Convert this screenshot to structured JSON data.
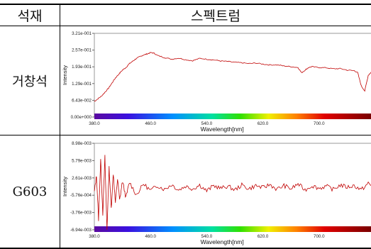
{
  "header": {
    "material": "석재",
    "spectrum": "스펙트럼"
  },
  "rows": [
    {
      "label": "거창석",
      "chart_data": {
        "type": "line",
        "xlabel": "Wavelength[nm]",
        "ylabel": "Intensity",
        "xlim": [
          380,
          780
        ],
        "ylim": [
          0,
          0.321
        ],
        "x_ticks": [
          "380.0",
          "460.0",
          "540.0",
          "620.0",
          "700.0",
          "78"
        ],
        "y_ticks": [
          "0.00e+000",
          "6.43e-002",
          "1.29e-001",
          "1.93e-001",
          "2.57e-001",
          "3.21e-001"
        ],
        "series": [
          {
            "color": "#c00000",
            "x": [
              380,
              385,
              390,
              395,
              400,
              405,
              410,
              415,
              420,
              425,
              430,
              435,
              440,
              445,
              450,
              455,
              460,
              465,
              470,
              480,
              490,
              500,
              510,
              520,
              530,
              540,
              550,
              560,
              570,
              580,
              590,
              600,
              610,
              620,
              630,
              640,
              650,
              660,
              670,
              675,
              680,
              685,
              690,
              700,
              710,
              720,
              730,
              740,
              750,
              755,
              760,
              765,
              770,
              775,
              780
            ],
            "y": [
              0.06,
              0.07,
              0.08,
              0.095,
              0.11,
              0.13,
              0.15,
              0.165,
              0.18,
              0.19,
              0.205,
              0.215,
              0.225,
              0.232,
              0.238,
              0.242,
              0.247,
              0.245,
              0.236,
              0.228,
              0.222,
              0.226,
              0.22,
              0.216,
              0.225,
              0.222,
              0.219,
              0.215,
              0.213,
              0.21,
              0.208,
              0.205,
              0.207,
              0.203,
              0.2,
              0.2,
              0.196,
              0.193,
              0.19,
              0.17,
              0.18,
              0.19,
              0.193,
              0.19,
              0.189,
              0.185,
              0.186,
              0.18,
              0.178,
              0.17,
              0.12,
              0.1,
              0.16,
              0.175,
              0.18
            ]
          }
        ]
      }
    },
    {
      "label": "G603",
      "chart_data": {
        "type": "line",
        "xlabel": "Wavelength[nm]",
        "ylabel": "Intensity",
        "xlim": [
          380,
          780
        ],
        "ylim": [
          -0.00694,
          0.00898
        ],
        "x_ticks": [
          "380.0",
          "460.0",
          "540.0",
          "620.0",
          "700.0",
          "78"
        ],
        "y_ticks": [
          "-6.94e-003",
          "-3.76e-003",
          "-5.76e-004",
          "2.61e-003",
          "5.79e-003",
          "8.98e-003"
        ],
        "series": [
          {
            "color": "#c00000",
            "noise_mean": 0.0008,
            "x": [
              380,
              383,
              386,
              389,
              392,
              395,
              398,
              401,
              404,
              407,
              410,
              413,
              416,
              420,
              425,
              430,
              440,
              450,
              460,
              470,
              480,
              490,
              500,
              510,
              520,
              530,
              540,
              550,
              560,
              570,
              580,
              590,
              600,
              610,
              620,
              630,
              640,
              650,
              660,
              670,
              680,
              690,
              700,
              710,
              720,
              730,
              740,
              750,
              760,
              770,
              780
            ],
            "y": [
              0.0,
              0.003,
              -0.005,
              0.006,
              -0.004,
              0.0065,
              -0.0069,
              0.0045,
              -0.003,
              0.0035,
              -0.002,
              0.0025,
              -0.0015,
              0.002,
              -0.001,
              0.0018,
              -0.0005,
              0.0015,
              0.0003,
              0.0012,
              0.0005,
              0.0014,
              0.0004,
              0.0011,
              0.0006,
              0.0013,
              0.0002,
              0.0012,
              0.0007,
              0.0011,
              0.0004,
              0.0013,
              0.0006,
              0.0012,
              0.0008,
              0.0014,
              0.0005,
              0.0012,
              0.0006,
              0.0015,
              0.0004,
              0.0012,
              0.0007,
              0.0011,
              0.0005,
              0.0013,
              0.0009,
              0.0012,
              0.0004,
              0.0016,
              0.0006
            ]
          }
        ]
      }
    }
  ]
}
